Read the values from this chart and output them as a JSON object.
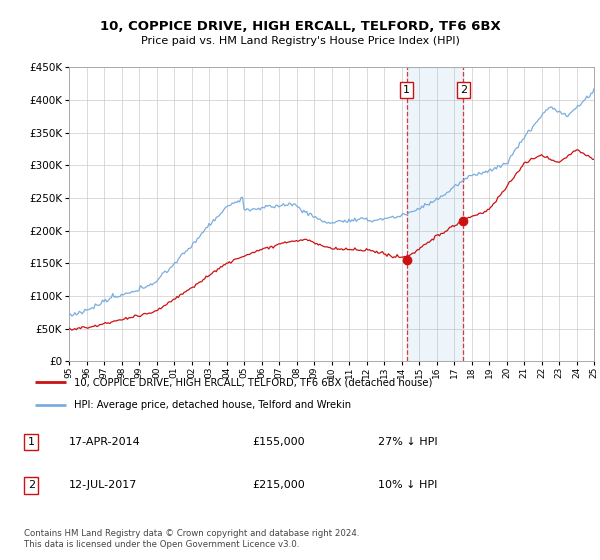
{
  "title": "10, COPPICE DRIVE, HIGH ERCALL, TELFORD, TF6 6BX",
  "subtitle": "Price paid vs. HM Land Registry's House Price Index (HPI)",
  "legend_line1": "10, COPPICE DRIVE, HIGH ERCALL, TELFORD, TF6 6BX (detached house)",
  "legend_line2": "HPI: Average price, detached house, Telford and Wrekin",
  "transaction1_date": "17-APR-2014",
  "transaction1_price": "£155,000",
  "transaction1_hpi": "27% ↓ HPI",
  "transaction2_date": "12-JUL-2017",
  "transaction2_price": "£215,000",
  "transaction2_hpi": "10% ↓ HPI",
  "footer": "Contains HM Land Registry data © Crown copyright and database right 2024.\nThis data is licensed under the Open Government Licence v3.0.",
  "ylim": [
    0,
    450000
  ],
  "yticks": [
    0,
    50000,
    100000,
    150000,
    200000,
    250000,
    300000,
    350000,
    400000,
    450000
  ],
  "ytick_labels": [
    "£0",
    "£50K",
    "£100K",
    "£150K",
    "£200K",
    "£250K",
    "£300K",
    "£350K",
    "£400K",
    "£450K"
  ],
  "hpi_color": "#7aadde",
  "price_color": "#cc1111",
  "transaction1_year": 2014.29,
  "transaction2_year": 2017.53,
  "marker1_value": 155000,
  "marker2_value": 215000,
  "background_color": "#ffffff",
  "grid_color": "#cccccc",
  "xlabel_years": [
    "95",
    "96",
    "97",
    "98",
    "99",
    "00",
    "01",
    "02",
    "03",
    "04",
    "05",
    "06",
    "07",
    "08",
    "09",
    "10",
    "11",
    "12",
    "13",
    "14",
    "15",
    "16",
    "17",
    "18",
    "19",
    "20",
    "21",
    "22",
    "23",
    "24",
    "25"
  ]
}
